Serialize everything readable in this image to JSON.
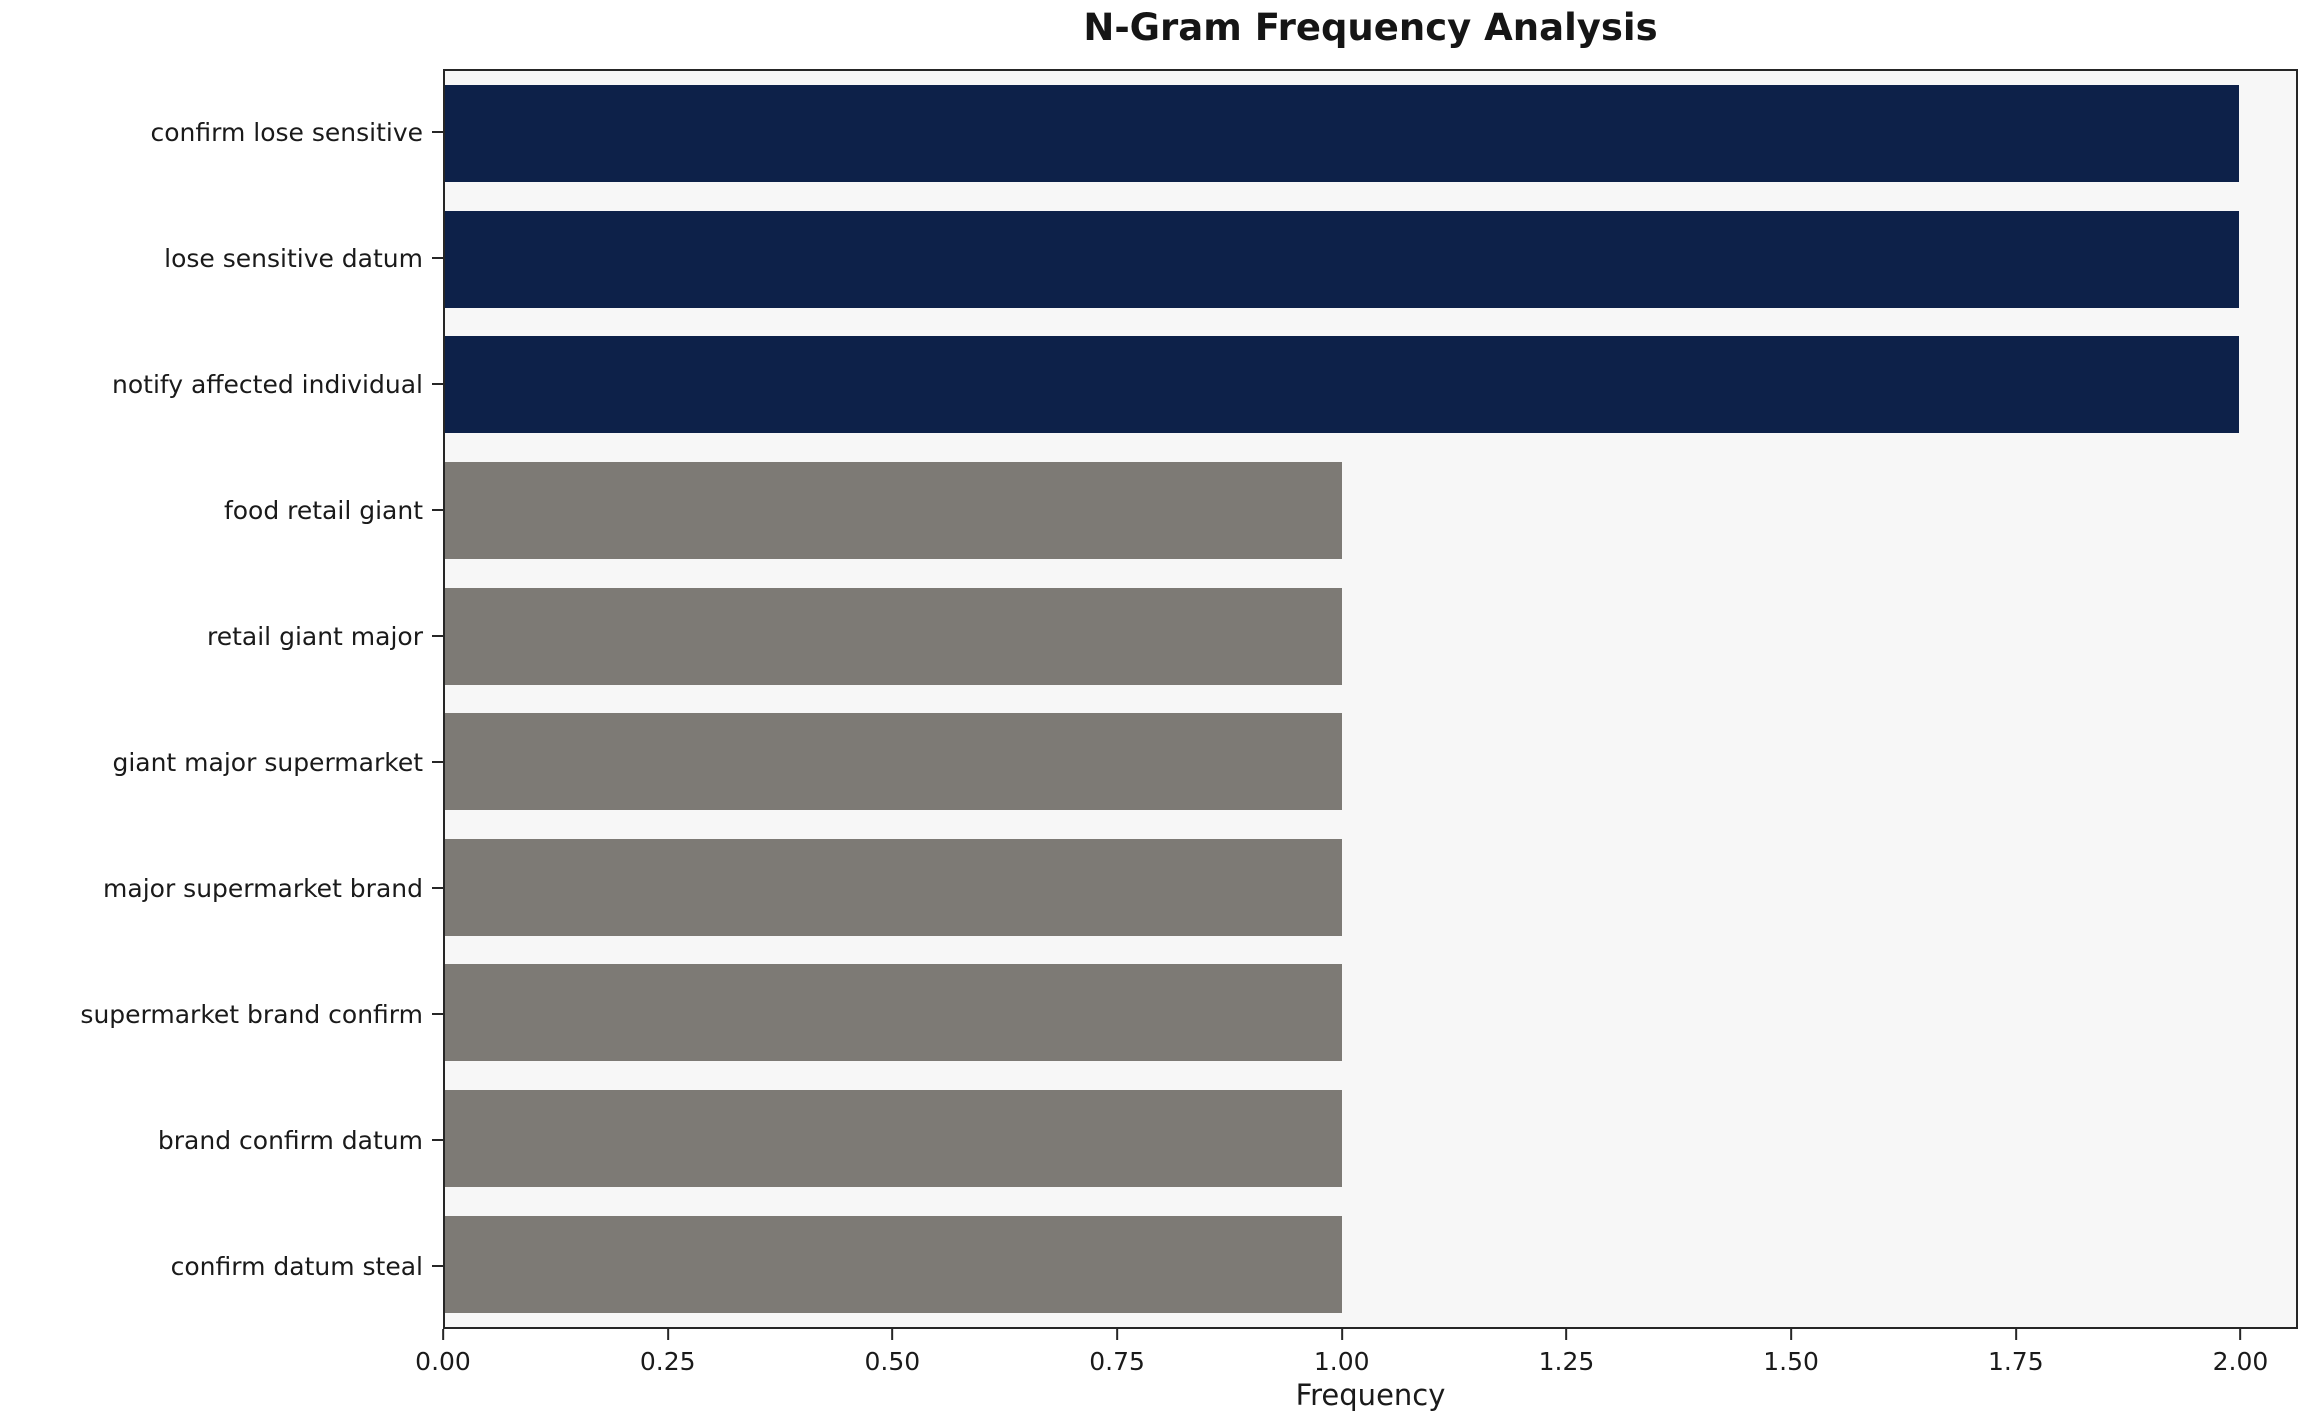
{
  "chart_data": {
    "type": "bar",
    "orientation": "horizontal",
    "title": "N-Gram Frequency Analysis",
    "xlabel": "Frequency",
    "ylabel": "",
    "categories": [
      "confirm lose sensitive",
      "lose sensitive datum",
      "notify affected individual",
      "food retail giant",
      "retail giant major",
      "giant major supermarket",
      "major supermarket brand",
      "supermarket brand confirm",
      "brand confirm datum",
      "confirm datum steal"
    ],
    "values": [
      2,
      2,
      2,
      1,
      1,
      1,
      1,
      1,
      1,
      1
    ],
    "bar_colors": [
      "#0d2149",
      "#0d2149",
      "#0d2149",
      "#7d7a75",
      "#7d7a75",
      "#7d7a75",
      "#7d7a75",
      "#7d7a75",
      "#7d7a75",
      "#7d7a75"
    ],
    "colors": {
      "highlight": "#0d2149",
      "default": "#7d7a75",
      "plot_background": "#f7f7f7",
      "spine": "#262626"
    },
    "xlim": [
      0,
      2.064
    ],
    "xticks": [
      "0.00",
      "0.25",
      "0.50",
      "0.75",
      "1.00",
      "1.25",
      "1.50",
      "1.75",
      "2.00"
    ],
    "xtick_values": [
      0,
      0.25,
      0.5,
      0.75,
      1.0,
      1.25,
      1.5,
      1.75,
      2.0
    ],
    "grid": false,
    "legend": "none"
  }
}
